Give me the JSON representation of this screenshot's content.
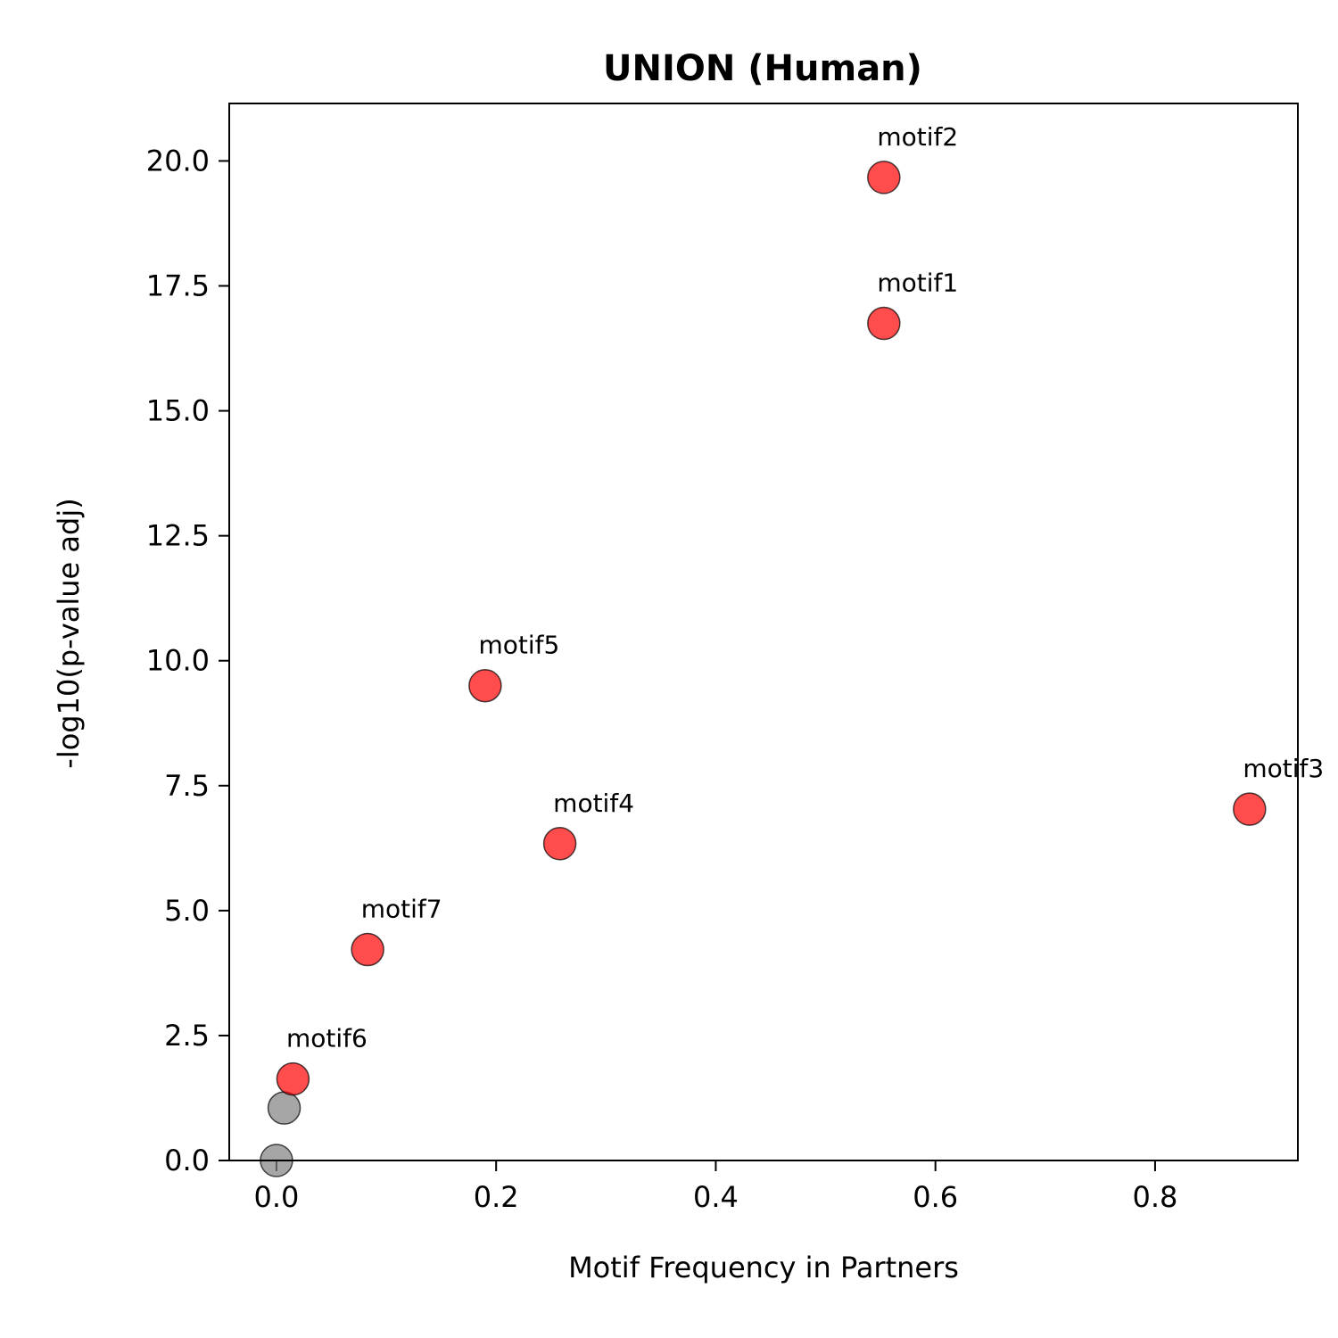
{
  "chart_data": {
    "type": "scatter",
    "title": "UNION (Human)",
    "xlabel": "Motif Frequency in Partners",
    "ylabel": "-log10(p-value adj)",
    "xlim": [
      -0.043,
      0.93
    ],
    "ylim": [
      0,
      21.15
    ],
    "xticks": [
      0.0,
      0.2,
      0.4,
      0.6,
      0.8
    ],
    "xtick_labels": [
      "0.0",
      "0.2",
      "0.4",
      "0.6",
      "0.8"
    ],
    "yticks": [
      0.0,
      2.5,
      5.0,
      7.5,
      10.0,
      12.5,
      15.0,
      17.5,
      20.0
    ],
    "ytick_labels": [
      "0.0",
      "2.5",
      "5.0",
      "7.5",
      "10.0",
      "12.5",
      "15.0",
      "17.5",
      "20.0"
    ],
    "grid": false,
    "legend": "none",
    "colors": {
      "significant": "#ff0000",
      "not_significant": "#808080"
    },
    "points": [
      {
        "label": "motif2",
        "x": 0.553,
        "y": 19.67,
        "significant": true
      },
      {
        "label": "motif1",
        "x": 0.553,
        "y": 16.75,
        "significant": true
      },
      {
        "label": "motif5",
        "x": 0.19,
        "y": 9.5,
        "significant": true
      },
      {
        "label": "motif3",
        "x": 0.886,
        "y": 7.03,
        "significant": true
      },
      {
        "label": "motif4",
        "x": 0.258,
        "y": 6.34,
        "significant": true
      },
      {
        "label": "motif7",
        "x": 0.083,
        "y": 4.22,
        "significant": true
      },
      {
        "label": "motif6",
        "x": 0.015,
        "y": 1.63,
        "significant": true
      },
      {
        "label": "",
        "x": 0.007,
        "y": 1.05,
        "significant": false
      },
      {
        "label": "",
        "x": 0.0,
        "y": 0.0,
        "significant": false
      }
    ]
  }
}
